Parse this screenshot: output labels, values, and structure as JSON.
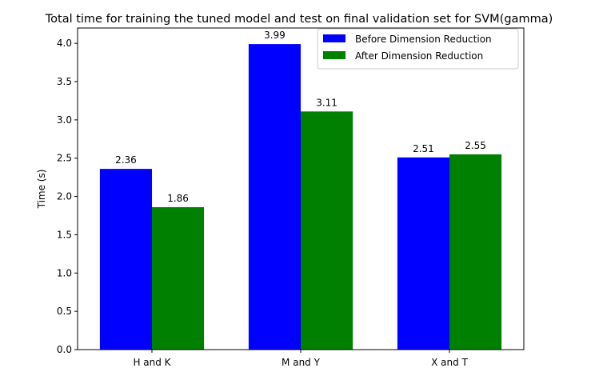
{
  "chart_data": {
    "type": "bar",
    "title": "Total time for training the tuned model and test on final validation set for SVM(gamma)",
    "xlabel": "",
    "ylabel": "Time (s)",
    "categories": [
      "H and K",
      "M and Y",
      "X and T"
    ],
    "series": [
      {
        "name": "Before Dimension Reduction",
        "color": "#0000ff",
        "values": [
          2.36,
          3.99,
          2.51
        ]
      },
      {
        "name": "After Dimension Reduction",
        "color": "#008000",
        "values": [
          1.86,
          3.11,
          2.55
        ]
      }
    ],
    "ylim": [
      0,
      4.2
    ],
    "yticks": [
      "0.0",
      "0.5",
      "1.0",
      "1.5",
      "2.0",
      "2.5",
      "3.0",
      "3.5",
      "4.0"
    ],
    "data_labels": [
      [
        "2.36",
        "3.99",
        "2.51"
      ],
      [
        "1.86",
        "3.11",
        "2.55"
      ]
    ],
    "legend_position": "top-right",
    "grid": false
  }
}
